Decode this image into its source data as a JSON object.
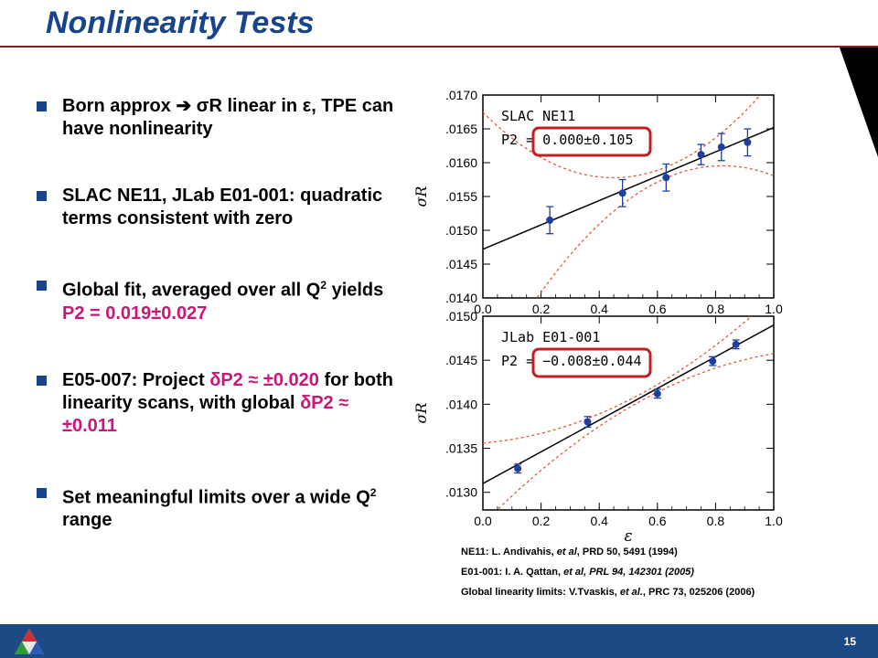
{
  "slide": {
    "title": "Nonlinearity Tests",
    "page_number": "15"
  },
  "bullets": [
    {
      "text": "Born approx ➔ σR linear in ε, TPE can have nonlinearity"
    },
    {
      "text": "SLAC NE11, JLab E01-001: quadratic terms consistent with zero"
    },
    {
      "text_a": "Global fit, averaged over all Q",
      "sup": "2",
      "text_b": " yields ",
      "highlight": "P2 = 0.019±0.027"
    },
    {
      "text_a": "E05-007: Project ",
      "highlight1": "δP2 ≈ ±0.020",
      "text_b": " for both linearity scans, with global ",
      "highlight2": "δP2 ≈ ±0.011"
    },
    {
      "text_a": "Set meaningful limits over a wide Q",
      "sup": "2",
      "text_b": " range"
    }
  ],
  "chart_data": [
    {
      "type": "scatter",
      "title": "SLAC NE11",
      "annotation": "P2 = 0.000±0.105",
      "xlabel": "",
      "ylabel": "σR",
      "xlim": [
        0.0,
        1.0
      ],
      "ylim": [
        0.014,
        0.017
      ],
      "xticks": [
        "0.0",
        "0.2",
        "0.4",
        "0.6",
        "0.8",
        "1.0"
      ],
      "yticks": [
        ".0140",
        ".0145",
        ".0150",
        ".0155",
        ".0160",
        ".0165",
        ".0170"
      ],
      "points": [
        {
          "x": 0.23,
          "y": 0.01515,
          "err": 0.0002
        },
        {
          "x": 0.48,
          "y": 0.01555,
          "err": 0.0002
        },
        {
          "x": 0.63,
          "y": 0.01578,
          "err": 0.0002
        },
        {
          "x": 0.75,
          "y": 0.01612,
          "err": 0.00015
        },
        {
          "x": 0.82,
          "y": 0.01623,
          "err": 0.0002
        },
        {
          "x": 0.91,
          "y": 0.0163,
          "err": 0.0002
        }
      ],
      "fit_line": [
        [
          0.0,
          0.01472
        ],
        [
          1.0,
          0.01652
        ]
      ]
    },
    {
      "type": "scatter",
      "title": "JLab E01-001",
      "annotation": "P2 = −0.008±0.044",
      "xlabel": "ε",
      "ylabel": "σR",
      "xlim": [
        0.0,
        1.0
      ],
      "ylim": [
        0.0128,
        0.015
      ],
      "xticks": [
        "0.0",
        "0.2",
        "0.4",
        "0.6",
        "0.8",
        "1.0"
      ],
      "yticks": [
        ".0130",
        ".0135",
        ".0140",
        ".0145",
        ".0150"
      ],
      "points": [
        {
          "x": 0.12,
          "y": 0.01327,
          "err": 5e-05
        },
        {
          "x": 0.36,
          "y": 0.0138,
          "err": 6e-05
        },
        {
          "x": 0.6,
          "y": 0.01412,
          "err": 5e-05
        },
        {
          "x": 0.79,
          "y": 0.01449,
          "err": 5e-05
        },
        {
          "x": 0.87,
          "y": 0.01468,
          "err": 5e-05
        }
      ],
      "fit_line": [
        [
          0.0,
          0.0131
        ],
        [
          1.0,
          0.0149
        ]
      ]
    }
  ],
  "references": [
    {
      "a": "NE11: L. Andivahis, ",
      "i": "et al",
      "b": ", PRD 50, 5491 (1994)"
    },
    {
      "a": "E01-001: I. A. Qattan, ",
      "i": "et al, PRL 94, 142301 (2005)",
      "b": ""
    },
    {
      "a": "Global linearity limits: V.Tvaskis, ",
      "i": "et al.",
      "b": ", PRC 73, 025206 (2006)"
    }
  ],
  "colors": {
    "title": "#17448a",
    "bullet_square": "#17448a",
    "highlight": "#c8177a",
    "points": "#1f3f9f",
    "fit_line": "#000000",
    "band": "#e05a3a",
    "annotation_box": "#c02020",
    "footer": "#1b4a85"
  }
}
